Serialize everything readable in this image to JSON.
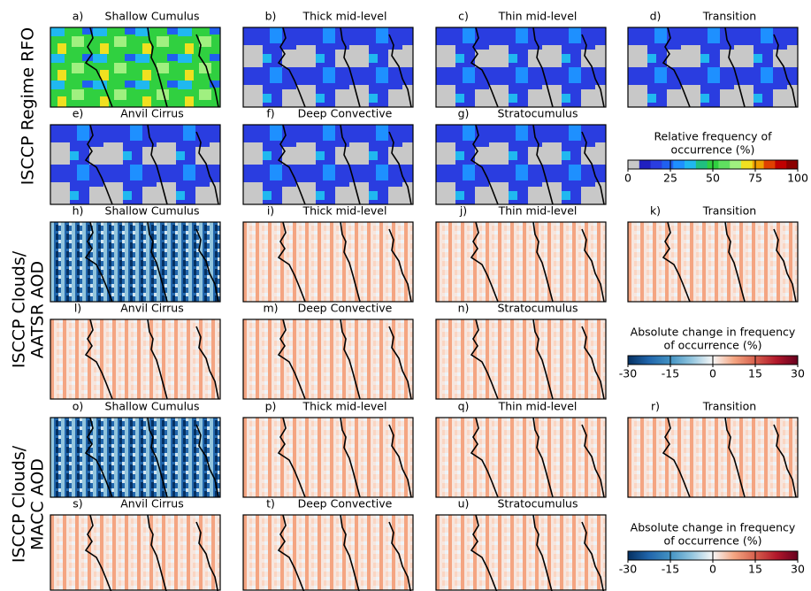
{
  "row_labels": [
    [
      "ISCCP Regime RFO"
    ],
    [
      "ISCCP Clouds/",
      "AATSR AOD"
    ],
    [
      "ISCCP Clouds/",
      "MACC AOD"
    ]
  ],
  "panels": [
    {
      "letter": "a)",
      "title": "Shallow Cumulus"
    },
    {
      "letter": "b)",
      "title": "Thick mid-level"
    },
    {
      "letter": "c)",
      "title": "Thin mid-level"
    },
    {
      "letter": "d)",
      "title": "Transition"
    },
    {
      "letter": "e)",
      "title": "Anvil Cirrus"
    },
    {
      "letter": "f)",
      "title": "Deep Convective"
    },
    {
      "letter": "g)",
      "title": "Stratocumulus"
    },
    {
      "letter": "h)",
      "title": "Shallow Cumulus"
    },
    {
      "letter": "i)",
      "title": "Thick mid-level"
    },
    {
      "letter": "j)",
      "title": "Thin mid-level"
    },
    {
      "letter": "k)",
      "title": "Transition"
    },
    {
      "letter": "l)",
      "title": "Anvil Cirrus"
    },
    {
      "letter": "m)",
      "title": "Deep Convective"
    },
    {
      "letter": "n)",
      "title": "Stratocumulus"
    },
    {
      "letter": "o)",
      "title": "Shallow Cumulus"
    },
    {
      "letter": "p)",
      "title": "Thick mid-level"
    },
    {
      "letter": "q)",
      "title": "Thin mid-level"
    },
    {
      "letter": "r)",
      "title": "Transition"
    },
    {
      "letter": "s)",
      "title": "Anvil Cirrus"
    },
    {
      "letter": "t)",
      "title": "Deep Convective"
    },
    {
      "letter": "u)",
      "title": "Stratocumulus"
    }
  ],
  "colorbars": [
    {
      "title": [
        "Relative frequency of",
        "occurrence (%)"
      ],
      "lim": [
        0,
        100
      ],
      "ticks": [
        0,
        25,
        50,
        75,
        100
      ],
      "discrete": true,
      "colors": [
        "#c8c8c8",
        "#2020c0",
        "#2a3de0",
        "#2060f0",
        "#1e90ff",
        "#20b8f0",
        "#20c080",
        "#30d040",
        "#60e060",
        "#a0f080",
        "#f0e020",
        "#f0a000",
        "#e04000",
        "#c00000",
        "#8b0000"
      ]
    },
    {
      "title": [
        "Absolute change in frequency",
        "of occurrence (%)"
      ],
      "lim": [
        -30,
        30
      ],
      "ticks": [
        -30,
        -15,
        0,
        15,
        30
      ],
      "discrete": false,
      "colors": [
        "#053061",
        "#2166ac",
        "#4393c3",
        "#92c5de",
        "#f7f7f7",
        "#f4a582",
        "#d6604d",
        "#b2182b",
        "#67001f"
      ]
    },
    {
      "title": [
        "Absolute change in frequency",
        "of occurrence (%)"
      ],
      "lim": [
        -30,
        30
      ],
      "ticks": [
        -30,
        -15,
        0,
        15,
        30
      ],
      "discrete": false,
      "colors": [
        "#053061",
        "#2166ac",
        "#4393c3",
        "#92c5de",
        "#f7f7f7",
        "#f4a582",
        "#d6604d",
        "#b2182b",
        "#67001f"
      ]
    }
  ]
}
